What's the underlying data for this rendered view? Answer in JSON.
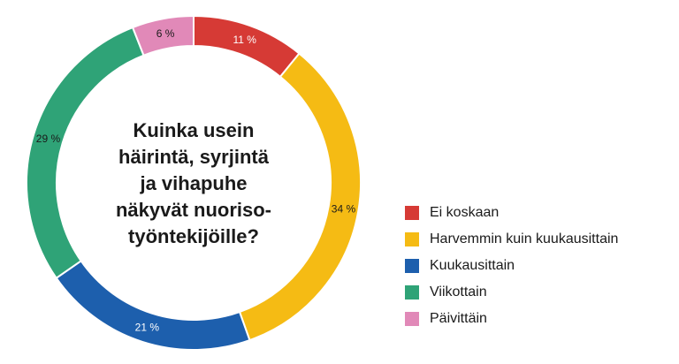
{
  "chart_data": {
    "type": "pie",
    "variant": "donut",
    "title_lines": [
      "Kuinka usein",
      "häirintä, syrjintä",
      "ja vihapuhe",
      "näkyvät nuoriso-",
      "työntekijöille?"
    ],
    "slices": [
      {
        "label": "Ei koskaan",
        "value": 11,
        "display": "11 %",
        "color": "#d63a35",
        "text_color": "#ffffff"
      },
      {
        "label": "Harvemmin kuin kuukausittain",
        "value": 34,
        "display": "34 %",
        "color": "#f5bb14",
        "text_color": "#1a1a1a"
      },
      {
        "label": "Kuukausittain",
        "value": 21,
        "display": "21 %",
        "color": "#1d5fad",
        "text_color": "#ffffff"
      },
      {
        "label": "Viikottain",
        "value": 29,
        "display": "29 %",
        "color": "#2fa377",
        "text_color": "#1a1a1a"
      },
      {
        "label": "Päivittäin",
        "value": 6,
        "display": "6 %",
        "color": "#e189b8",
        "text_color": "#1a1a1a"
      }
    ],
    "legend_position": "right"
  }
}
